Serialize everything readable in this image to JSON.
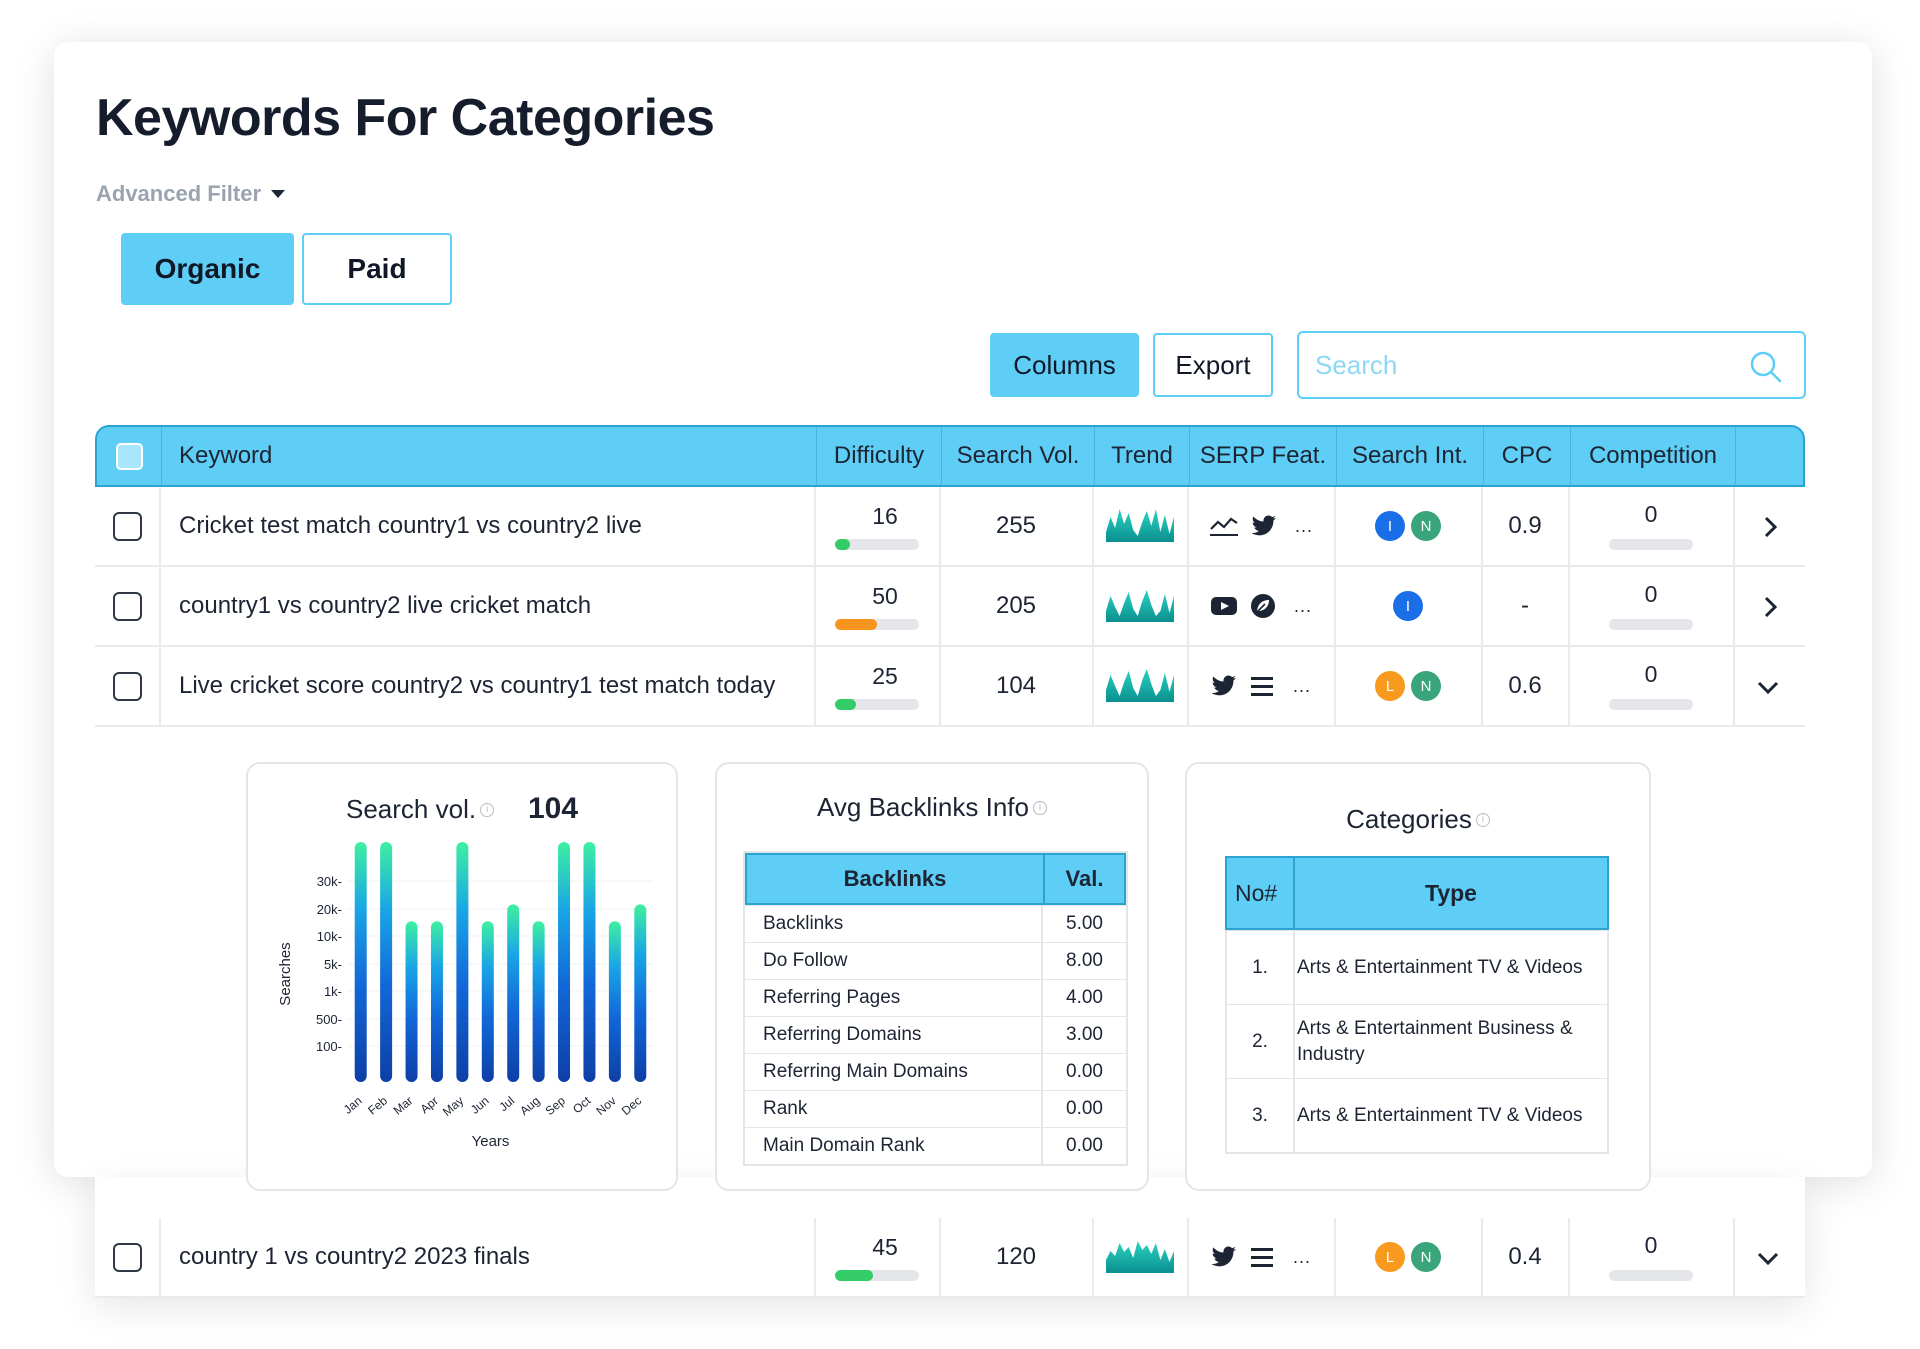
{
  "page": {
    "title": "Keywords For Categories",
    "advanced_filter": "Advanced Filter"
  },
  "tabs": {
    "organic": "Organic",
    "paid": "Paid"
  },
  "toolbar": {
    "columns": "Columns",
    "export": "Export",
    "search_placeholder": "Search"
  },
  "colors": {
    "accent": "#5ecef6",
    "green": "#33cc66",
    "orange": "#f7941d",
    "blue_badge": "#1a6ee8",
    "teal_badge": "#3aa57a",
    "orange_badge": "#f79a1d"
  },
  "table": {
    "headers": {
      "keyword": "Keyword",
      "difficulty": "Difficulty",
      "search_vol": "Search Vol.",
      "trend": "Trend",
      "serp": "SERP Feat.",
      "intent": "Search Int.",
      "cpc": "CPC",
      "competition": "Competition"
    },
    "rows": [
      {
        "keyword": "Cricket test match country1 vs country2 live",
        "difficulty": "16",
        "difficulty_pct": 16,
        "difficulty_color": "green",
        "volume": "255",
        "serp_icons": [
          "trend-line-icon",
          "twitter-icon"
        ],
        "serp_more": "...",
        "intents": [
          {
            "letter": "I",
            "color": "blue"
          },
          {
            "letter": "N",
            "color": "teal"
          }
        ],
        "cpc": "0.9",
        "competition": "0",
        "expanded": false
      },
      {
        "keyword": "country1 vs country2 live cricket match",
        "difficulty": "50",
        "difficulty_pct": 50,
        "difficulty_color": "orange",
        "volume": "205",
        "serp_icons": [
          "youtube-icon",
          "leaf-icon"
        ],
        "serp_more": "...",
        "intents": [
          {
            "letter": "I",
            "color": "blue"
          }
        ],
        "cpc": "-",
        "competition": "0",
        "expanded": false
      },
      {
        "keyword": "Live cricket score country2 vs country1 test match today",
        "difficulty": "25",
        "difficulty_pct": 25,
        "difficulty_color": "green",
        "volume": "104",
        "serp_icons": [
          "twitter-icon",
          "list-icon"
        ],
        "serp_more": "...",
        "intents": [
          {
            "letter": "L",
            "color": "orange"
          },
          {
            "letter": "N",
            "color": "teal"
          }
        ],
        "cpc": "0.6",
        "competition": "0",
        "expanded": true
      },
      {
        "keyword": "country 1 vs country2 2023 finals",
        "difficulty": "45",
        "difficulty_pct": 45,
        "difficulty_color": "green",
        "volume": "120",
        "serp_icons": [
          "twitter-icon",
          "list-icon"
        ],
        "serp_more": "...",
        "intents": [
          {
            "letter": "L",
            "color": "orange"
          },
          {
            "letter": "N",
            "color": "teal"
          }
        ],
        "cpc": "0.4",
        "competition": "0",
        "expanded": true
      }
    ]
  },
  "search_vol_panel": {
    "title": "Search vol.",
    "value": "104",
    "ylabel": "Searches",
    "xlabel": "Years"
  },
  "chart_data": {
    "type": "bar",
    "categories": [
      "Jan",
      "Feb",
      "Mar",
      "Apr",
      "May",
      "Jun",
      "Jul",
      "Aug",
      "Sep",
      "Oct",
      "Nov",
      "Dec"
    ],
    "y_ticks": [
      "30k-",
      "20k-",
      "10k-",
      "5k-",
      "1k-",
      "500-",
      "100-"
    ],
    "values_relative": [
      1.0,
      1.0,
      0.67,
      0.67,
      1.0,
      0.67,
      0.74,
      0.67,
      1.0,
      1.0,
      0.67,
      0.74
    ],
    "xlabel": "Years",
    "ylabel": "Searches"
  },
  "backlinks_panel": {
    "title": "Avg Backlinks Info",
    "headers": {
      "name": "Backlinks",
      "value": "Val."
    },
    "rows": [
      {
        "name": "Backlinks",
        "value": "5.00"
      },
      {
        "name": "Do Follow",
        "value": "8.00"
      },
      {
        "name": "Referring Pages",
        "value": "4.00"
      },
      {
        "name": "Referring Domains",
        "value": "3.00"
      },
      {
        "name": "Referring Main Domains",
        "value": "0.00"
      },
      {
        "name": "Rank",
        "value": "0.00"
      },
      {
        "name": "Main Domain Rank",
        "value": "0.00"
      }
    ]
  },
  "categories_panel": {
    "title": "Categories",
    "headers": {
      "no": "No#",
      "type": "Type"
    },
    "rows": [
      {
        "no": "1.",
        "type": "Arts & Entertainment TV & Videos"
      },
      {
        "no": "2.",
        "type": "Arts & Entertainment Business & Industry"
      },
      {
        "no": "3.",
        "type": "Arts & Entertainment TV & Videos"
      }
    ]
  }
}
